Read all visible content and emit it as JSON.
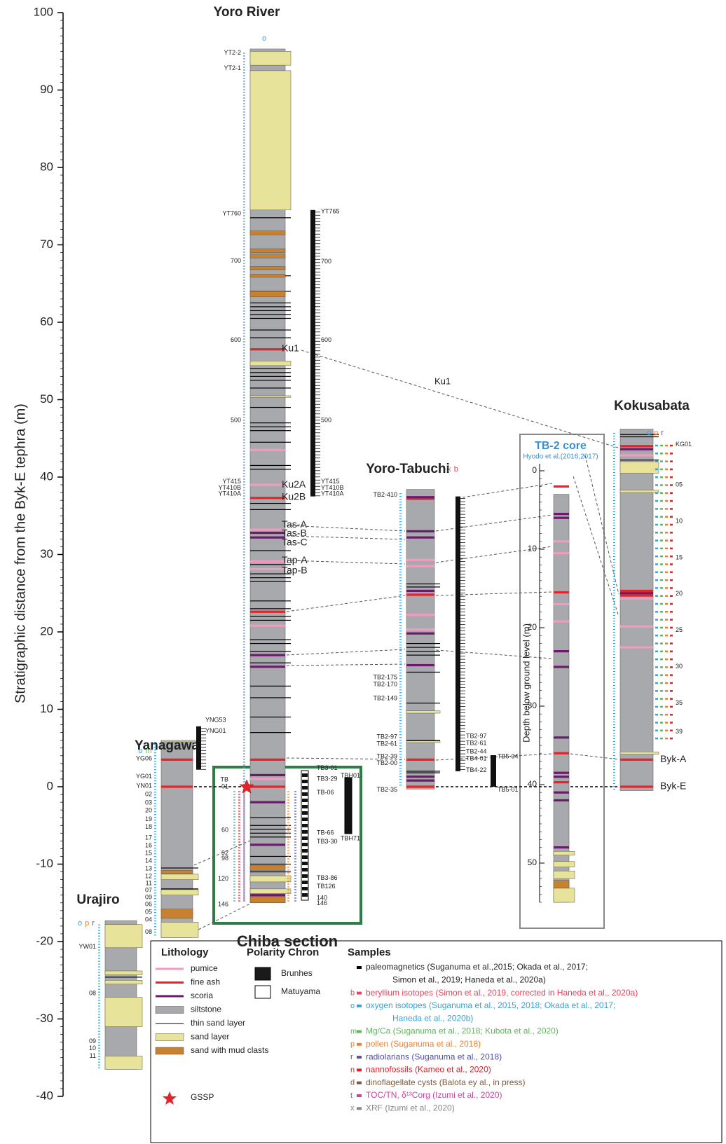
{
  "axis": {
    "label": "Stratigraphic distance from the Byk-E tephra (m)",
    "lim": [
      -40,
      100
    ],
    "ticks": [
      100,
      90,
      80,
      70,
      60,
      50,
      40,
      30,
      20,
      10,
      0,
      -10,
      -20,
      -30,
      -40
    ]
  },
  "sections": [
    {
      "title": "Yoro River",
      "top": 95.3,
      "bottom": -15,
      "layers": [
        [
          43.5,
          39,
          33.2,
          29.1,
          28.1,
          20.8,
          1.0
        ],
        [
          56.5,
          37.3,
          22.6,
          3.5,
          0
        ],
        [
          32.8,
          32.2,
          17,
          15.5,
          1.5,
          -2,
          -7.5,
          -14
        ],
        [],
        [
          73.5,
          66,
          64,
          62.5,
          62,
          61.5,
          61,
          60.5,
          59,
          58,
          54,
          53.5,
          53,
          52.5,
          51.5,
          49,
          47,
          46.5,
          46,
          44.5,
          41.5,
          41,
          36.6,
          35.8,
          30.5,
          28.7,
          27.5,
          27,
          26.5,
          24,
          23,
          22,
          21.5,
          19,
          18.5,
          17.5,
          16,
          13,
          11.5,
          9,
          7,
          -4,
          -5,
          -5.5,
          -6,
          -6.5,
          -9,
          -10,
          -11
        ],
        [
          [
            95,
            93.2
          ],
          [
            92.5,
            74.5
          ],
          [
            55,
            54.4
          ],
          [
            50.5,
            50.3
          ],
          [
            -11.5,
            -12.3
          ],
          [
            -13.2,
            -13.8
          ]
        ],
        [
          [
            71.8,
            71.3
          ],
          [
            69.5,
            69
          ],
          [
            68.8,
            68.3
          ],
          [
            67.2,
            66.8
          ],
          [
            66.2,
            65.8
          ],
          [
            64,
            63.3
          ],
          [
            -10.2,
            -10.8
          ],
          [
            -14.2,
            -15
          ]
        ]
      ],
      "labels": [
        {
          "text": "YT2-2",
          "depth": 94.8
        },
        {
          "text": "YT2-1",
          "depth": 92.8
        },
        {
          "text": "YT760",
          "depth": 74
        },
        {
          "text": "700",
          "depth": 67.9
        },
        {
          "text": "600",
          "depth": 57.7
        },
        {
          "text": "500",
          "depth": 47.3
        },
        {
          "text": "YT415",
          "depth": 39.4
        },
        {
          "text": "YT410B",
          "depth": 38.6
        },
        {
          "text": "YT410A",
          "depth": 37.8
        }
      ],
      "paleomag": [
        74.5,
        37.5
      ],
      "right_labels": [
        {
          "text": "YT765",
          "depth": 74.3
        },
        {
          "text": "700",
          "depth": 67.8
        },
        {
          "text": "600",
          "depth": 57.7
        },
        {
          "text": "500",
          "depth": 47.3
        },
        {
          "text": "YT415",
          "depth": 39.4
        },
        {
          "text": "YT410B",
          "depth": 38.6
        },
        {
          "text": "YT410A",
          "depth": 37.8
        }
      ],
      "tephra": [
        {
          "text": "Ku1",
          "depth": 56.6
        },
        {
          "text": "Ku2A",
          "depth": 39
        },
        {
          "text": "Ku2B",
          "depth": 37.4
        },
        {
          "text": "Tas-A",
          "depth": 33.8
        },
        {
          "text": "Tas-B",
          "depth": 32.7
        },
        {
          "text": "Tas-C",
          "depth": 31.5
        },
        {
          "text": "Tap-A",
          "depth": 29.2
        },
        {
          "text": "Tap-B",
          "depth": 27.9
        }
      ],
      "header": "o"
    },
    {
      "title": "Yoro-Tabuchi",
      "top": 38.4,
      "bottom": -0.3,
      "layers": [
        [
          29.3,
          28.5,
          22.2,
          20.3
        ],
        [
          37.2,
          24.8,
          3.5,
          0
        ],
        [
          37.4,
          33,
          32.2,
          25.3,
          19.8,
          15.7,
          1.3,
          0.8
        ],
        [],
        [
          26.2,
          25.8,
          18.5,
          18,
          17.5,
          17,
          14.8,
          10.8,
          6,
          2,
          1.8
        ],
        [
          [
            9.8,
            9.5
          ],
          [
            5.9,
            5.7
          ]
        ],
        []
      ],
      "labels": [
        {
          "text": "TB2-410",
          "depth": 37.7
        },
        {
          "text": "TB2-175",
          "depth": 14.1
        },
        {
          "text": "TB2-170",
          "depth": 13.2
        },
        {
          "text": "TB2-149",
          "depth": 11.4
        },
        {
          "text": "TB2-97",
          "depth": 6.4
        },
        {
          "text": "TB2-61",
          "depth": 5.5
        },
        {
          "text": "TB2-39",
          "depth": 3.9
        },
        {
          "text": "TB2-00",
          "depth": 3.0
        },
        {
          "text": "TB2-35",
          "depth": -0.4
        }
      ],
      "paleomag": [
        37.5,
        2
      ],
      "right_labels": [
        {
          "text": "TB2-97",
          "depth": 6.5
        },
        {
          "text": "TB2-61",
          "depth": 5.6
        },
        {
          "text": "TB2-44",
          "depth": 4.5
        },
        {
          "text": "TB4-01",
          "depth": 3.6
        },
        {
          "text": "TB4-22",
          "depth": 2.1
        }
      ],
      "tephra": [],
      "header": "x b"
    },
    {
      "title": "Kokusabata",
      "top": 46.2,
      "bottom": -0.5,
      "layers": [
        [
          42.8,
          24.3,
          20.7,
          18
        ],
        [
          44,
          25.3,
          24.7,
          3.5,
          0
        ],
        [
          43.6,
          25
        ],
        [],
        [
          45.5,
          45.2,
          42.2
        ],
        [
          [
            42,
            40.5
          ],
          [
            38.3,
            38
          ],
          [
            4.5,
            4.2
          ]
        ],
        []
      ],
      "labels": [],
      "right_labels": [
        {
          "text": "KG01",
          "depth": 44.2
        },
        {
          "text": "05",
          "depth": 39
        },
        {
          "text": "10",
          "depth": 34.3
        },
        {
          "text": "15",
          "depth": 29.6
        },
        {
          "text": "20",
          "depth": 24.9
        },
        {
          "text": "25",
          "depth": 20.2
        },
        {
          "text": "30",
          "depth": 15.5
        },
        {
          "text": "35",
          "depth": 10.8
        },
        {
          "text": "39",
          "depth": 7.1
        }
      ],
      "tephra": [
        {
          "text": "Byk-A",
          "depth": 3.5
        },
        {
          "text": "Byk-E",
          "depth": 0
        }
      ],
      "header": "o p r"
    },
    {
      "title": "Yanagawa",
      "top": 6,
      "bottom": -19.5,
      "layers": [
        [],
        [
          3.5,
          0
        ],
        [],
        [],
        [
          -10.5,
          -13.2
        ],
        [
          [
            6,
            5.8
          ],
          [
            -11.3,
            -12
          ],
          [
            -13.3,
            -14
          ],
          [
            -17.5,
            -19.5
          ]
        ],
        [
          [
            -10.8,
            -11.2
          ],
          [
            -15.8,
            -17
          ]
        ]
      ],
      "labels": [
        {
          "text": "YG06",
          "depth": 3.6
        },
        {
          "text": "YG01",
          "depth": 1.3
        },
        {
          "text": "YN01",
          "depth": 0.1
        },
        {
          "text": "02",
          "depth": -1
        },
        {
          "text": "03",
          "depth": -2.1
        },
        {
          "text": "20",
          "depth": -3.1
        },
        {
          "text": "19",
          "depth": -4.2
        },
        {
          "text": "18",
          "depth": -5.2
        },
        {
          "text": "17",
          "depth": -6.6
        },
        {
          "text": "16",
          "depth": -7.6
        },
        {
          "text": "15",
          "depth": -8.6
        },
        {
          "text": "14",
          "depth": -9.6
        },
        {
          "text": "13",
          "depth": -10.6
        },
        {
          "text": "12",
          "depth": -11.6
        },
        {
          "text": "11",
          "depth": -12.5
        },
        {
          "text": "07",
          "depth": -13.4
        },
        {
          "text": "09",
          "depth": -14.3
        },
        {
          "text": "06",
          "depth": -15.2
        },
        {
          "text": "05",
          "depth": -16.2
        },
        {
          "text": "04",
          "depth": -17.2
        },
        {
          "text": "08",
          "depth": -18.8
        }
      ],
      "paleomag": [
        7.8,
        2.2
      ],
      "right_labels": [
        {
          "text": "YNG53",
          "depth": 8.6
        },
        {
          "text": "YNG01",
          "depth": 7.2
        }
      ],
      "tephra": [],
      "header": "o m"
    },
    {
      "title": "Urajiro",
      "top": -17.3,
      "bottom": -36.5,
      "layers": [
        [],
        [],
        [],
        [],
        [
          -24.6
        ],
        [
          [
            -17.8,
            -20.8
          ],
          [
            -23.8,
            -24.3
          ],
          [
            -25,
            -25.5
          ],
          [
            -27.2,
            -31
          ],
          [
            -34.8,
            -36.5
          ]
        ],
        []
      ],
      "labels": [
        {
          "text": "YW01",
          "depth": -20.7
        },
        {
          "text": "08",
          "depth": -26.7
        },
        {
          "text": "09",
          "depth": -32.9
        },
        {
          "text": "10",
          "depth": -33.8
        },
        {
          "text": "11",
          "depth": -34.8
        }
      ],
      "right_labels": [],
      "tephra": [],
      "header": "o p r"
    }
  ],
  "core": {
    "title": "TB-2 core",
    "subtitle": "Hyodo et al.(2016,2017)",
    "axis_label": "Depth below ground level (m)",
    "lim": [
      0,
      55
    ],
    "ticks": [
      0,
      10,
      20,
      30,
      40,
      50
    ],
    "top": 3,
    "bottom": 55,
    "layers": [
      [
        9,
        10.5,
        17,
        19.2
      ],
      [
        2,
        15.5,
        36,
        39.7
      ],
      [
        5.5,
        6,
        23,
        25,
        34,
        38.5,
        39,
        41,
        42,
        48
      ],
      [],
      [],
      [
        [
          48.5,
          49
        ],
        [
          49.8,
          50.5
        ],
        [
          51,
          52
        ],
        [
          53.2,
          55
        ]
      ],
      [
        [
          52.2,
          53.2
        ]
      ]
    ]
  },
  "correlation_label": "Ku1",
  "chiba": {
    "title": "Chiba section",
    "labels": [
      {
        "text": "TB3-01",
        "depth": 2.4
      },
      {
        "text": "TB3-29",
        "depth": 1
      },
      {
        "text": "TB-06",
        "depth": -0.8
      },
      {
        "text": "TB-66",
        "depth": -6
      },
      {
        "text": "TB3-30",
        "depth": -7.1
      },
      {
        "text": "TB3-86",
        "depth": -11.8
      },
      {
        "text": "TB126",
        "depth": -12.9
      },
      {
        "text": "140",
        "depth": -14.4
      },
      {
        "text": "146",
        "depth": -15.1
      }
    ],
    "left_labels": [
      {
        "text": "TB",
        "depth": 0.9
      },
      {
        "text": "01",
        "depth": 0
      },
      {
        "text": "60",
        "depth": -5.6
      },
      {
        "text": "92",
        "depth": -8.6
      },
      {
        "text": "98",
        "depth": -9.3
      },
      {
        "text": "120",
        "depth": -11.9
      },
      {
        "text": "146",
        "depth": -15.2
      }
    ],
    "tbh": [
      {
        "text": "TBH01",
        "depth": 1.4
      },
      {
        "text": "TBH71",
        "depth": -6.7
      }
    ],
    "tb5": [
      {
        "text": "TB5-34",
        "depth": 3.9
      },
      {
        "text": "TB5-01",
        "depth": -0.4
      }
    ]
  },
  "legend": {
    "lithology_title": "Lithology",
    "lithology": [
      {
        "name": "pumice",
        "color": "#f29ac0"
      },
      {
        "name": "fine ash",
        "color": "#e3242b"
      },
      {
        "name": "scoria",
        "color": "#6a1b6b"
      },
      {
        "name": "siltstone",
        "color": "#a7a9ac"
      },
      {
        "name": "thin sand layer",
        "color": "#000000"
      },
      {
        "name": "sand layer",
        "color": "#e8e39a"
      },
      {
        "name": "sand with mud clasts",
        "color": "#c8822f"
      }
    ],
    "gssp": "GSSP",
    "polarity_title": "Polarity Chron",
    "polarity": [
      {
        "name": "Brunhes",
        "color": "#1a1a1a"
      },
      {
        "name": "Matuyama",
        "color": "#ffffff"
      }
    ],
    "samples_title": "Samples",
    "samples": [
      {
        "letter": "",
        "color": "#000000",
        "lines": [
          "paleomagnetics (Suganuma et al.,2015; Okada et al., 2017;",
          "Simon et al., 2019; Haneda et al., 2020a)"
        ]
      },
      {
        "letter": "b",
        "color": "#e8415a",
        "lines": [
          "beryllium isotopes (Simon et al., 2019, corrected in Haneda et al., 2020a)"
        ]
      },
      {
        "letter": "o",
        "color": "#3aa0d8",
        "lines": [
          "oxygen isotopes (Suganuma et al., 2015, 2018; Okada et al., 2017;",
          "Haneda et al., 2020b)"
        ]
      },
      {
        "letter": "m",
        "color": "#5cb85c",
        "lines": [
          "Mg/Ca (Suganuma et al., 2018; Kubota et al., 2020)"
        ]
      },
      {
        "letter": "p",
        "color": "#f08030",
        "lines": [
          "pollen (Suganuma et al., 2018)"
        ]
      },
      {
        "letter": "r",
        "color": "#5050a8",
        "lines": [
          "radiolarians (Suganuma et al., 2018)"
        ]
      },
      {
        "letter": "n",
        "color": "#e0202a",
        "lines": [
          "nannofossils (Kameo et al., 2020)"
        ]
      },
      {
        "letter": "d",
        "color": "#7a5a3a",
        "lines": [
          "dinoflagellate cysts (Balota ey al., in press)"
        ]
      },
      {
        "letter": "t",
        "color": "#d040a0",
        "lines": [
          "TOC/TN, δ¹³Corg (Izumi et al., 2020)"
        ]
      },
      {
        "letter": "x",
        "color": "#888888",
        "lines": [
          "XRF (Izumi et al., 2020)"
        ]
      }
    ]
  }
}
